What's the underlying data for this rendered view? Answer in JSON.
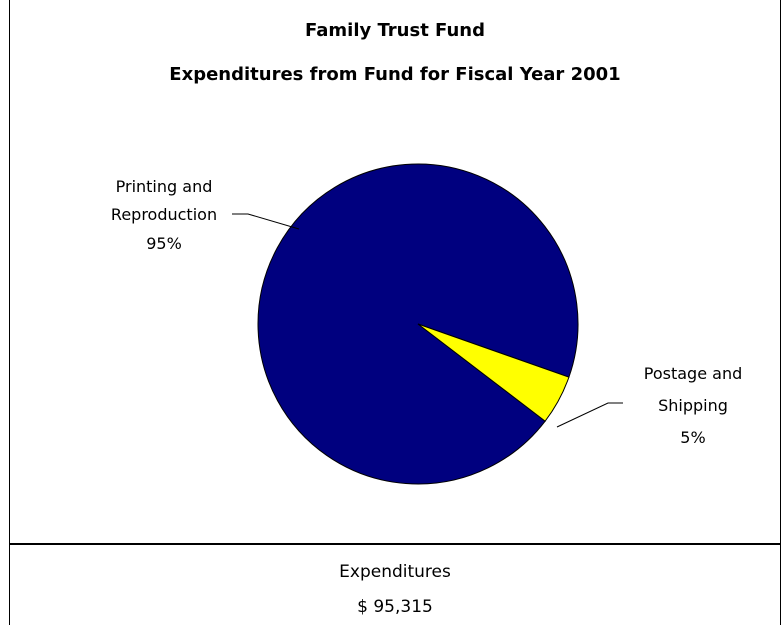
{
  "chart_data": {
    "type": "pie",
    "title": "Family Trust Fund",
    "subtitle": "Expenditures from Fund for Fiscal Year 2001",
    "slices": [
      {
        "label_lines": [
          "Printing and",
          "Reproduction",
          "95%"
        ],
        "value": 95,
        "color": "#00007f"
      },
      {
        "label_lines": [
          "Postage and",
          "Shipping",
          "5%"
        ],
        "value": 5,
        "color": "#ffff00"
      }
    ]
  },
  "summary": {
    "label": "Expenditures",
    "value": "$ 95,315"
  }
}
